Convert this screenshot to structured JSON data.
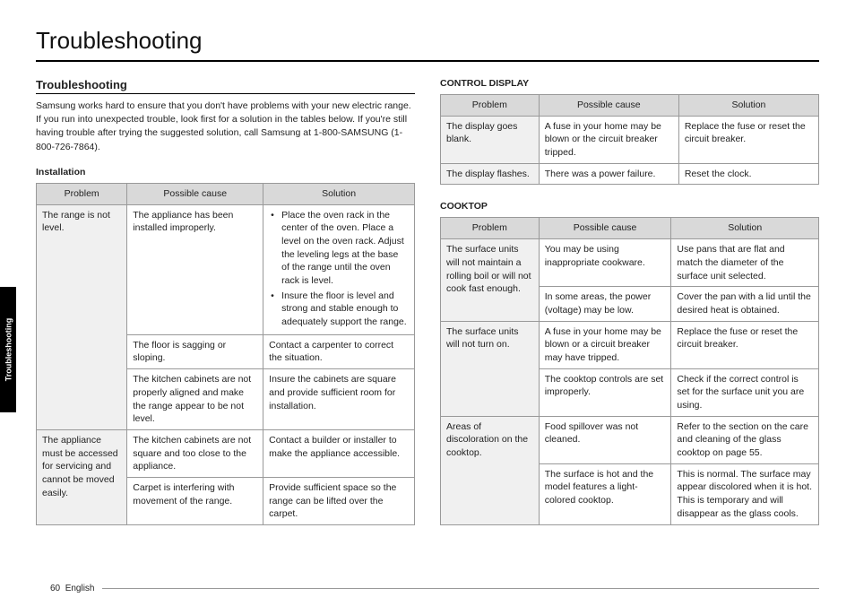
{
  "pageTitle": "Troubleshooting",
  "sideTab": "Troubleshooting",
  "footer": {
    "page": "60",
    "lang": "English"
  },
  "left": {
    "heading": "Troubleshooting",
    "intro": "Samsung works hard to ensure that you don't have problems with your new electric range. If you run into unexpected trouble, look first for a solution in the tables below. If you're still having trouble after trying the suggested solution, call Samsung at 1-800-SAMSUNG (1-800-726-7864).",
    "installHeading": "Installation",
    "headers": {
      "problem": "Problem",
      "cause": "Possible cause",
      "solution": "Solution"
    },
    "install": {
      "p1": "The range is not level.",
      "c1a": "The appliance has been installed improperly.",
      "s1a1": "Place the oven rack in the center of the oven. Place a level on the oven rack. Adjust the leveling legs at the base of the range until the oven rack is level.",
      "s1a2": "Insure the floor is level and strong and stable enough to adequately support the range.",
      "c1b": "The floor is sagging or sloping.",
      "s1b": "Contact a carpenter to correct the situation.",
      "c1c": "The kitchen cabinets are not properly aligned and make the range appear to be not level.",
      "s1c": "Insure the cabinets are square and provide sufficient room for installation.",
      "p2": "The appliance must be accessed for servicing and cannot be moved easily.",
      "c2a": "The kitchen cabinets are not square and too close to the appliance.",
      "s2a": "Contact a builder or installer to make the appliance accessible.",
      "c2b": "Carpet is interfering with movement of the range.",
      "s2b": "Provide sufficient space so the range can be lifted over the carpet."
    }
  },
  "right": {
    "ctrlHeading": "CONTROL DISPLAY",
    "cookHeading": "COOKTOP",
    "ctrl": {
      "p1": "The display goes blank.",
      "c1": "A fuse in your home may be blown or the circuit breaker tripped.",
      "s1": "Replace the fuse or reset the circuit breaker.",
      "p2": "The display flashes.",
      "c2": "There was a power failure.",
      "s2": "Reset the clock."
    },
    "cook": {
      "p1": "The surface units will not maintain a rolling boil or will not cook fast enough.",
      "c1a": "You may be using inappropriate cookware.",
      "s1a": "Use pans that are flat and match the diameter of the surface unit selected.",
      "c1b": "In some areas, the power (voltage) may be low.",
      "s1b": "Cover the pan with a lid until the desired heat is obtained.",
      "p2": "The surface units will not turn on.",
      "c2a": "A fuse in your home may be blown or a circuit breaker may have tripped.",
      "s2a": "Replace the fuse or reset the circuit breaker.",
      "c2b": "The cooktop controls are set improperly.",
      "s2b": "Check if the correct control is set for the surface unit you are using.",
      "p3": "Areas of discoloration on the cooktop.",
      "c3a": "Food spillover was not cleaned.",
      "s3a": "Refer to the section on the care and cleaning of the glass cooktop on page 55.",
      "c3b": "The surface is hot and the model features a light-colored cooktop.",
      "s3b": "This is normal. The surface may appear discolored when it is hot. This is temporary and will disappear as the glass cools."
    }
  }
}
